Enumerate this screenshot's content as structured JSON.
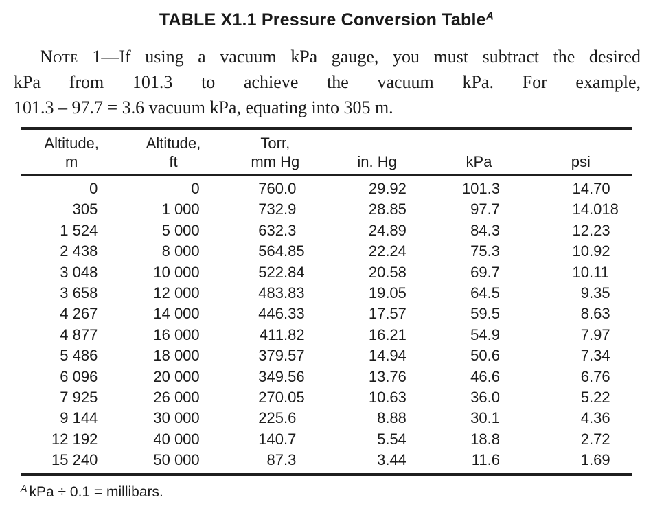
{
  "title": {
    "text": "TABLE X1.1 Pressure Conversion Table",
    "footnote_ref": "A"
  },
  "note": {
    "label": "Note",
    "line1_rest": " 1—If using a vacuum kPa gauge, you must subtract the desired",
    "line2": "kPa from 101.3 to achieve the vacuum kPa. For example,",
    "line3": "101.3 – 97.7 = 3.6 vacuum kPa, equating into 305 m."
  },
  "table": {
    "columns": [
      {
        "line1": "Altitude,",
        "line2": "m"
      },
      {
        "line1": "Altitude,",
        "line2": "ft"
      },
      {
        "line1": "Torr,",
        "line2": "mm Hg"
      },
      {
        "line1": "",
        "line2": "in. Hg"
      },
      {
        "line1": "",
        "line2": "kPa"
      },
      {
        "line1": "",
        "line2": "psi"
      }
    ],
    "rows": [
      [
        "0",
        "0",
        "760.0",
        "29.92",
        "101.3",
        "14.70"
      ],
      [
        "305",
        "1 000",
        "732.9",
        "28.85",
        "97.7",
        "14.018"
      ],
      [
        "1 524",
        "5 000",
        "632.3",
        "24.89",
        "84.3",
        "12.23"
      ],
      [
        "2 438",
        "8 000",
        "564.85",
        "22.24",
        "75.3",
        "10.92"
      ],
      [
        "3 048",
        "10 000",
        "522.84",
        "20.58",
        "69.7",
        "10.11"
      ],
      [
        "3 658",
        "12 000",
        "483.83",
        "19.05",
        "64.5",
        "9.35"
      ],
      [
        "4 267",
        "14 000",
        "446.33",
        "17.57",
        "59.5",
        "8.63"
      ],
      [
        "4 877",
        "16 000",
        "411.82",
        "16.21",
        "54.9",
        "7.97"
      ],
      [
        "5 486",
        "18 000",
        "379.57",
        "14.94",
        "50.6",
        "7.34"
      ],
      [
        "6 096",
        "20 000",
        "349.56",
        "13.76",
        "46.6",
        "6.76"
      ],
      [
        "7 925",
        "26 000",
        "270.05",
        "10.63",
        "36.0",
        "5.22"
      ],
      [
        "9 144",
        "30 000",
        "225.6",
        "8.88",
        "30.1",
        "4.36"
      ],
      [
        "12 192",
        "40 000",
        "140.7",
        "5.54",
        "18.8",
        "2.72"
      ],
      [
        "15 240",
        "50 000",
        "87.3",
        "3.44",
        "11.6",
        "1.69"
      ]
    ]
  },
  "footnote": {
    "ref": "A",
    "text": "kPa ÷ 0.1 = millibars."
  }
}
